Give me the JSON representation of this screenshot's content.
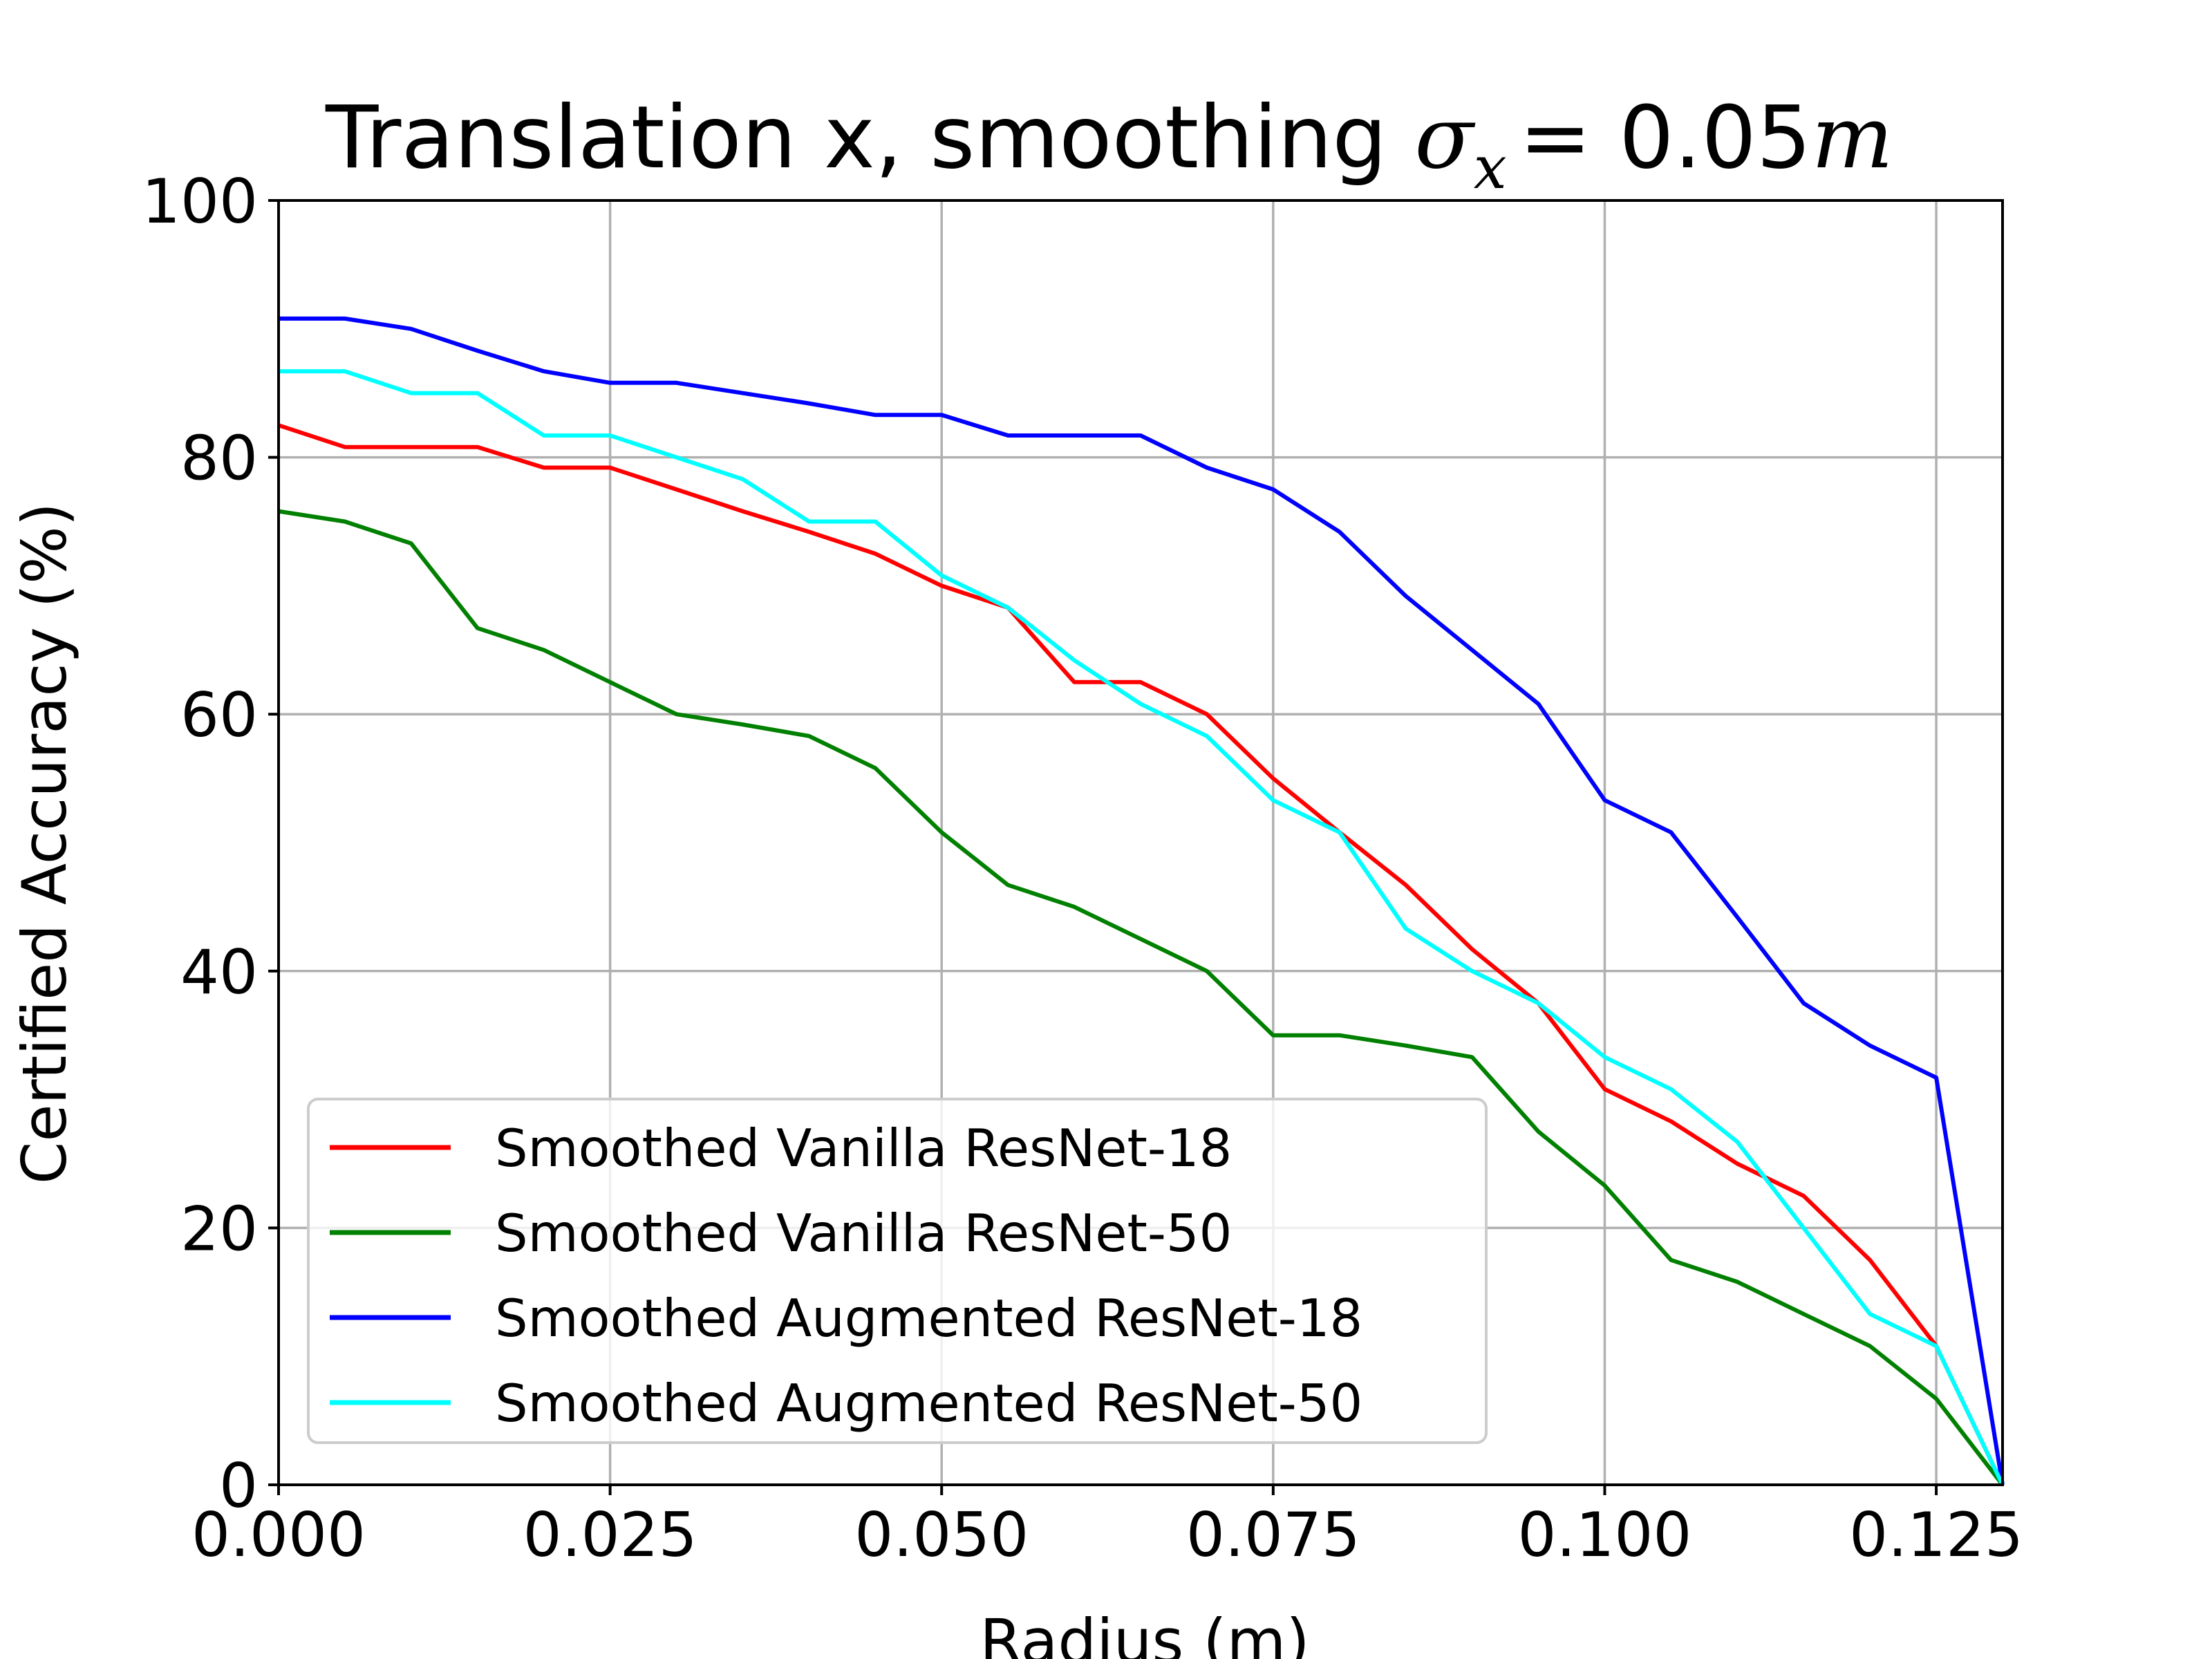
{
  "chart_data": {
    "type": "line",
    "title": {
      "prefix": "Translation x, smoothing ",
      "sigma": "σ",
      "sigma_sub": "x",
      "equals": "= 0.05",
      "unit": "m"
    },
    "xlabel": "Radius (m)",
    "ylabel": "Certified Accuracy (%)",
    "xlim": [
      0,
      0.13
    ],
    "ylim": [
      0,
      100
    ],
    "xticks": [
      0,
      0.025,
      0.05,
      0.075,
      0.1,
      0.125
    ],
    "xtick_labels": [
      "0.000",
      "0.025",
      "0.050",
      "0.075",
      "0.100",
      "0.125"
    ],
    "yticks": [
      0,
      20,
      40,
      60,
      80,
      100
    ],
    "ytick_labels": [
      "0",
      "20",
      "40",
      "60",
      "80",
      "100"
    ],
    "grid": true,
    "legend_position": "lower-left",
    "x": [
      0,
      0.005,
      0.01,
      0.015,
      0.02,
      0.025,
      0.03,
      0.035,
      0.04,
      0.045,
      0.05,
      0.055,
      0.06,
      0.065,
      0.07,
      0.075,
      0.08,
      0.085,
      0.09,
      0.095,
      0.1,
      0.105,
      0.11,
      0.115,
      0.12,
      0.125,
      0.13
    ],
    "series": [
      {
        "name": "Smoothed Vanilla ResNet-18",
        "color": "#ff0000",
        "values": [
          82.5,
          80.8,
          80.8,
          80.8,
          79.2,
          79.2,
          77.5,
          75.8,
          74.2,
          72.5,
          70.0,
          68.3,
          62.5,
          62.5,
          60.0,
          55.0,
          50.8,
          46.7,
          41.7,
          37.5,
          30.8,
          28.3,
          25.0,
          22.5,
          17.5,
          10.8,
          0
        ]
      },
      {
        "name": "Smoothed Vanilla ResNet-50",
        "color": "#008000",
        "values": [
          75.8,
          75.0,
          73.3,
          66.7,
          65.0,
          62.5,
          60.0,
          59.2,
          58.3,
          55.8,
          50.8,
          46.7,
          45.0,
          42.5,
          40.0,
          35.0,
          35.0,
          34.2,
          33.3,
          27.5,
          23.3,
          17.5,
          15.8,
          13.3,
          10.8,
          6.7,
          0
        ]
      },
      {
        "name": "Smoothed Augmented ResNet-18",
        "color": "#0000ff",
        "values": [
          90.8,
          90.8,
          90.0,
          88.3,
          86.7,
          85.8,
          85.8,
          85.0,
          84.2,
          83.3,
          83.3,
          81.7,
          81.7,
          81.7,
          79.2,
          77.5,
          74.2,
          69.2,
          65.0,
          60.8,
          53.3,
          50.8,
          44.2,
          37.5,
          34.2,
          31.7,
          0
        ]
      },
      {
        "name": "Smoothed Augmented ResNet-50",
        "color": "#00ffff",
        "values": [
          86.7,
          86.7,
          85.0,
          85.0,
          81.7,
          81.7,
          80.0,
          78.3,
          75.0,
          75.0,
          70.8,
          68.3,
          64.2,
          60.8,
          58.3,
          53.3,
          50.8,
          43.3,
          40.0,
          37.5,
          33.3,
          30.8,
          26.7,
          20.0,
          13.3,
          10.8,
          0
        ]
      }
    ]
  }
}
